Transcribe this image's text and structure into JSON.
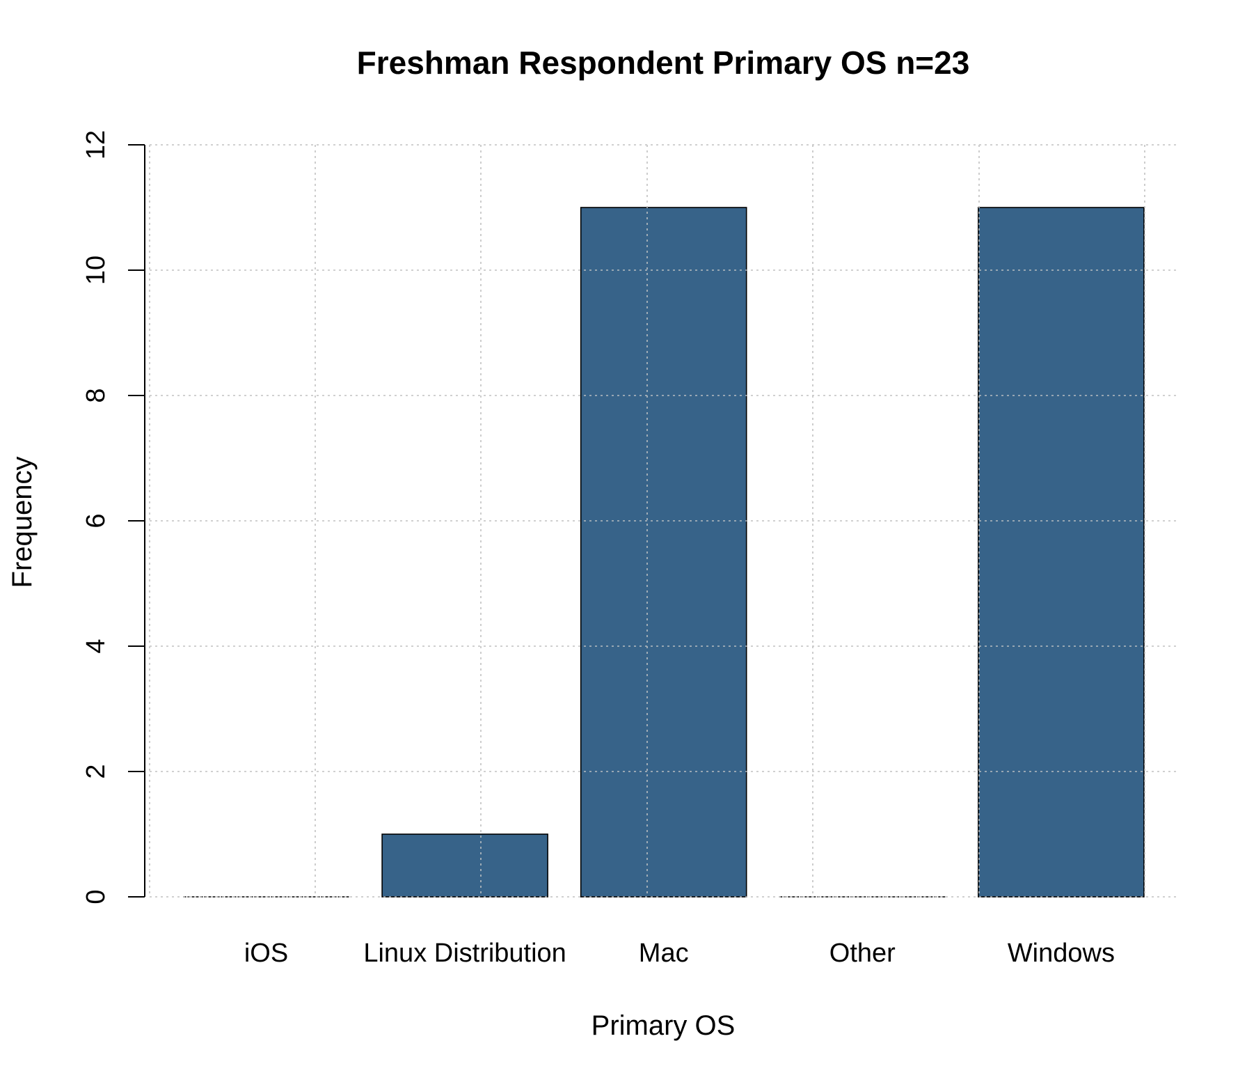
{
  "chart_data": {
    "type": "bar",
    "title": "Freshman Respondent Primary OS n=23",
    "xlabel": "Primary OS",
    "ylabel": "Frequency",
    "categories": [
      "iOS",
      "Linux Distribution",
      "Mac",
      "Other",
      "Windows"
    ],
    "values": [
      0,
      1,
      11,
      0,
      11
    ],
    "ylim": [
      0,
      12
    ],
    "yticks": [
      "0",
      "2",
      "4",
      "6",
      "8",
      "10",
      "12"
    ],
    "grid": true,
    "bar_color": "#376389",
    "legend": "none"
  }
}
